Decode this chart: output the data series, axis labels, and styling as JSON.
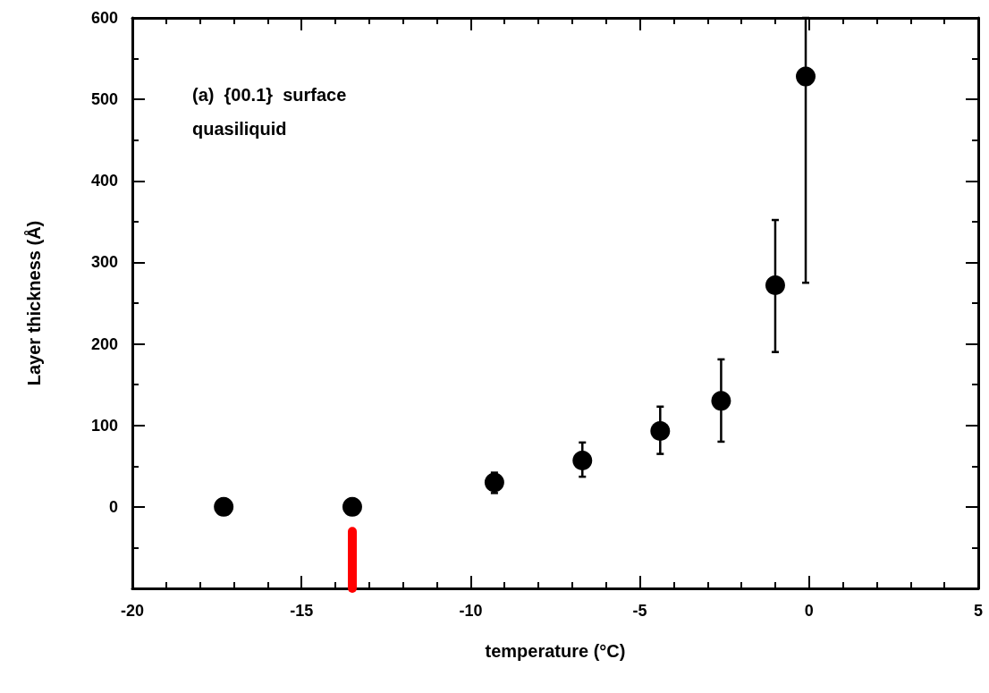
{
  "chart_data": {
    "type": "scatter",
    "xlabel": "temperature (°C)",
    "ylabel": "Layer thickness (Å)",
    "annotations": [
      "(a)  {00.1}  surface\nquasiliquid"
    ],
    "x": [
      -17.3,
      -13.5,
      -9.3,
      -6.7,
      -4.4,
      -2.6,
      -1.0,
      -0.1
    ],
    "series": [
      {
        "color": "#000000",
        "values": [
          0,
          0,
          30,
          57,
          93,
          130,
          272,
          528
        ],
        "errors": [
          null,
          null,
          [
            17,
            42
          ],
          [
            37,
            79
          ],
          [
            65,
            123
          ],
          [
            80,
            181
          ],
          [
            190,
            352
          ],
          [
            275,
            600
          ]
        ]
      }
    ],
    "xlim": [
      -20,
      5
    ],
    "xticks": [
      -20,
      -15,
      -10,
      -5,
      0,
      5
    ],
    "ylim": [
      -100,
      600
    ],
    "yticks": [
      0,
      100,
      200,
      300,
      400,
      500,
      600
    ],
    "ref_lines": [
      {
        "axis": "x",
        "value": -13.5,
        "color": "#ff0000"
      }
    ],
    "marker": "circle",
    "grid": false
  }
}
